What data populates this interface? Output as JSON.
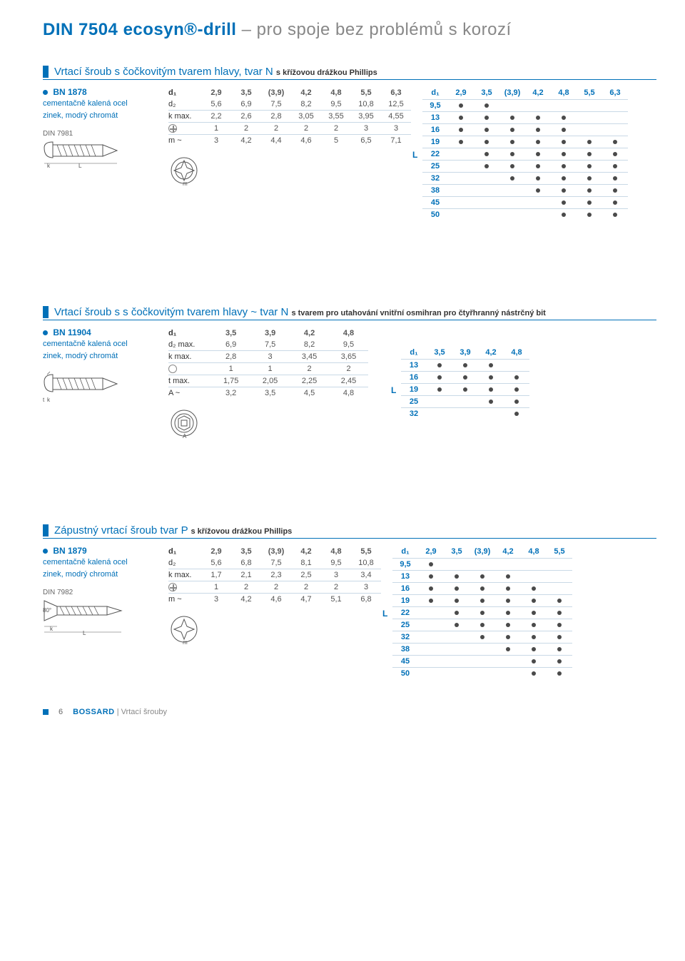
{
  "page": {
    "title_din": "DIN 7504",
    "title_prod": "ecosyn®-drill",
    "title_rest": " – pro spoje bez problémů s korozí",
    "footer_page": "6",
    "footer_brand": "BOSSARD",
    "footer_cat": "Vrtací šrouby"
  },
  "colors": {
    "accent": "#0070b8",
    "dot": "#4a4a4a",
    "rule": "#c9d9e6",
    "muted": "#888"
  },
  "section1": {
    "title": "Vrtací šroub s čočkovitým tvarem hlavy, tvar N",
    "sub": "s křížovou drážkou Phillips",
    "bn": "BN 1878",
    "mat1": "cementačně kalená ocel",
    "mat2": "zinek, modrý chromát",
    "din_ref": "DIN 7981",
    "spec_headers": [
      "d₁",
      "2,9",
      "3,5",
      "(3,9)",
      "4,2",
      "4,8",
      "5,5",
      "6,3"
    ],
    "spec_rows": [
      [
        "d₂",
        "5,6",
        "6,9",
        "7,5",
        "8,2",
        "9,5",
        "10,8",
        "12,5"
      ],
      [
        "k max.",
        "2,2",
        "2,6",
        "2,8",
        "3,05",
        "3,55",
        "3,95",
        "4,55"
      ],
      [
        "⊕",
        "1",
        "2",
        "2",
        "2",
        "2",
        "3",
        "3"
      ],
      [
        "m ~",
        "3",
        "4,2",
        "4,4",
        "4,6",
        "5",
        "6,5",
        "7,1"
      ]
    ],
    "avail_headers": [
      "d₁",
      "2,9",
      "3,5",
      "(3,9)",
      "4,2",
      "4,8",
      "5,5",
      "6,3"
    ],
    "avail_rows": [
      {
        "l": "9,5",
        "d": [
          1,
          1,
          0,
          0,
          0,
          0,
          0
        ]
      },
      {
        "l": "13",
        "d": [
          1,
          1,
          1,
          1,
          1,
          0,
          0
        ]
      },
      {
        "l": "16",
        "d": [
          1,
          1,
          1,
          1,
          1,
          0,
          0
        ]
      },
      {
        "l": "19",
        "d": [
          1,
          1,
          1,
          1,
          1,
          1,
          1
        ]
      },
      {
        "l": "22",
        "d": [
          0,
          1,
          1,
          1,
          1,
          1,
          1
        ]
      },
      {
        "l": "25",
        "d": [
          0,
          1,
          1,
          1,
          1,
          1,
          1
        ]
      },
      {
        "l": "32",
        "d": [
          0,
          0,
          1,
          1,
          1,
          1,
          1
        ]
      },
      {
        "l": "38",
        "d": [
          0,
          0,
          0,
          1,
          1,
          1,
          1
        ]
      },
      {
        "l": "45",
        "d": [
          0,
          0,
          0,
          0,
          1,
          1,
          1
        ]
      },
      {
        "l": "50",
        "d": [
          0,
          0,
          0,
          0,
          1,
          1,
          1
        ]
      }
    ],
    "l_label_before": 4
  },
  "section2": {
    "title": "Vrtací šroub s s čočkovitým tvarem hlavy ~ tvar N",
    "sub": "s tvarem pro utahování vnitřní osmihran pro čtyřhranný nástrčný bit",
    "bn": "BN 11904",
    "mat1": "cementačně kalená ocel",
    "mat2": "zinek, modrý chromát",
    "spec_headers": [
      "d₁",
      "3,5",
      "3,9",
      "4,2",
      "4,8"
    ],
    "spec_rows": [
      [
        "d₂ max.",
        "6,9",
        "7,5",
        "8,2",
        "9,5"
      ],
      [
        "k max.",
        "2,8",
        "3",
        "3,45",
        "3,65"
      ],
      [
        "⬡",
        "1",
        "1",
        "2",
        "2"
      ],
      [
        "t max.",
        "1,75",
        "2,05",
        "2,25",
        "2,45"
      ],
      [
        "A ~",
        "3,2",
        "3,5",
        "4,5",
        "4,8"
      ]
    ],
    "avail_headers": [
      "d₁",
      "3,5",
      "3,9",
      "4,2",
      "4,8"
    ],
    "avail_rows": [
      {
        "l": "13",
        "d": [
          1,
          1,
          1,
          0
        ]
      },
      {
        "l": "16",
        "d": [
          1,
          1,
          1,
          1
        ]
      },
      {
        "l": "19",
        "d": [
          1,
          1,
          1,
          1
        ]
      },
      {
        "l": "25",
        "d": [
          0,
          0,
          1,
          1
        ]
      },
      {
        "l": "32",
        "d": [
          0,
          0,
          0,
          1
        ]
      }
    ],
    "l_label_before": 2
  },
  "section3": {
    "title": "Zápustný vrtací šroub tvar P",
    "sub": "s křížovou drážkou Phillips",
    "bn": "BN 1879",
    "mat1": "cementačně kalená ocel",
    "mat2": "zinek, modrý chromát",
    "din_ref": "DIN 7982",
    "angle": "80°",
    "spec_headers": [
      "d₁",
      "2,9",
      "3,5",
      "(3,9)",
      "4,2",
      "4,8",
      "5,5"
    ],
    "spec_rows": [
      [
        "d₂",
        "5,6",
        "6,8",
        "7,5",
        "8,1",
        "9,5",
        "10,8"
      ],
      [
        "k max.",
        "1,7",
        "2,1",
        "2,3",
        "2,5",
        "3",
        "3,4"
      ],
      [
        "⊕",
        "1",
        "2",
        "2",
        "2",
        "2",
        "3"
      ],
      [
        "m ~",
        "3",
        "4,2",
        "4,6",
        "4,7",
        "5,1",
        "6,8"
      ]
    ],
    "avail_headers": [
      "d₁",
      "2,9",
      "3,5",
      "(3,9)",
      "4,2",
      "4,8",
      "5,5"
    ],
    "avail_rows": [
      {
        "l": "9,5",
        "d": [
          1,
          0,
          0,
          0,
          0,
          0
        ]
      },
      {
        "l": "13",
        "d": [
          1,
          1,
          1,
          1,
          0,
          0
        ]
      },
      {
        "l": "16",
        "d": [
          1,
          1,
          1,
          1,
          1,
          0
        ]
      },
      {
        "l": "19",
        "d": [
          1,
          1,
          1,
          1,
          1,
          1
        ]
      },
      {
        "l": "22",
        "d": [
          0,
          1,
          1,
          1,
          1,
          1
        ]
      },
      {
        "l": "25",
        "d": [
          0,
          1,
          1,
          1,
          1,
          1
        ]
      },
      {
        "l": "32",
        "d": [
          0,
          0,
          1,
          1,
          1,
          1
        ]
      },
      {
        "l": "38",
        "d": [
          0,
          0,
          0,
          1,
          1,
          1
        ]
      },
      {
        "l": "45",
        "d": [
          0,
          0,
          0,
          0,
          1,
          1
        ]
      },
      {
        "l": "50",
        "d": [
          0,
          0,
          0,
          0,
          1,
          1
        ]
      }
    ],
    "l_label_before": 4
  }
}
